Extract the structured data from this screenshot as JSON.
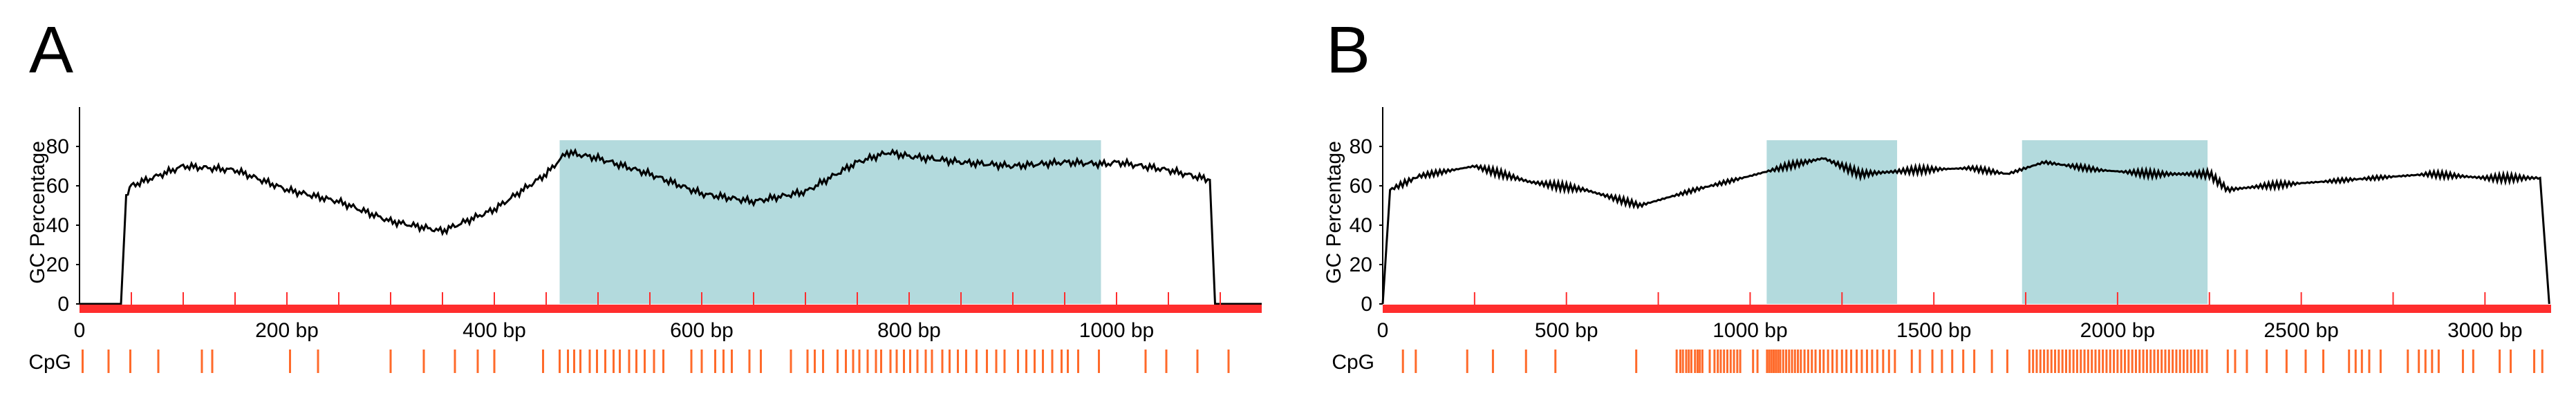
{
  "colors": {
    "trace": "#000000",
    "island": "#b3dadd",
    "track": "#ff2d2d",
    "cpg": "#ff6a2a",
    "axis": "#000000"
  },
  "chart_data": [
    {
      "type": "line",
      "panel_label": "A",
      "ylabel": "GC Percentage",
      "yticks": [
        0,
        20,
        40,
        60,
        80
      ],
      "ylim": [
        0,
        100
      ],
      "xlim": [
        0,
        1140
      ],
      "xticks": [
        0,
        200,
        400,
        600,
        800,
        1000
      ],
      "xtick_labels": [
        "0",
        "200 bp",
        "400 bp",
        "600 bp",
        "800 bp",
        "1000 bp"
      ],
      "x": [
        0,
        40,
        45,
        50,
        100,
        150,
        200,
        250,
        300,
        350,
        400,
        450,
        470,
        500,
        550,
        600,
        650,
        700,
        750,
        780,
        800,
        850,
        900,
        950,
        990,
        1000,
        1050,
        1090,
        1095,
        1140
      ],
      "y": [
        0,
        0,
        55,
        60,
        70,
        68,
        58,
        52,
        42,
        37,
        48,
        66,
        77,
        74,
        66,
        56,
        52,
        57,
        72,
        77,
        75,
        72,
        70,
        72,
        71,
        72,
        68,
        63,
        0,
        0
      ],
      "islands": [
        [
          463,
          985
        ]
      ],
      "cpg_label": "CpG",
      "cpg_sites": [
        3,
        28,
        49,
        76,
        118,
        128,
        203,
        230,
        300,
        332,
        362,
        384,
        400,
        447,
        463,
        471,
        477,
        483,
        492,
        499,
        507,
        515,
        521,
        530,
        537,
        545,
        554,
        563,
        590,
        600,
        613,
        621,
        629,
        646,
        657,
        686,
        702,
        709,
        717,
        731,
        739,
        746,
        752,
        760,
        768,
        773,
        782,
        788,
        795,
        801,
        808,
        816,
        822,
        832,
        839,
        847,
        855,
        865,
        875,
        884,
        892,
        905,
        913,
        921,
        929,
        938,
        947,
        953,
        963,
        983,
        1028,
        1048,
        1078,
        1108
      ]
    },
    {
      "type": "line",
      "panel_label": "B",
      "ylabel": "GC Percentage",
      "yticks": [
        0,
        20,
        40,
        60,
        80
      ],
      "ylim": [
        0,
        100
      ],
      "xlim": [
        0,
        3180
      ],
      "xticks": [
        0,
        500,
        1000,
        1500,
        2000,
        2500,
        3000
      ],
      "xtick_labels": [
        "0",
        "500 bp",
        "1000 bp",
        "1500 bp",
        "2000 bp",
        "2500 bp",
        "3000 bp"
      ],
      "x": [
        0,
        20,
        100,
        250,
        400,
        550,
        700,
        850,
        1000,
        1100,
        1200,
        1300,
        1450,
        1600,
        1700,
        1800,
        1950,
        2100,
        2250,
        2300,
        2400,
        2550,
        2700,
        2850,
        3000,
        3150,
        3175
      ],
      "y": [
        0,
        58,
        65,
        70,
        62,
        58,
        50,
        58,
        65,
        70,
        74,
        66,
        68,
        69,
        66,
        72,
        68,
        66,
        66,
        58,
        60,
        62,
        64,
        66,
        64,
        64,
        0
      ],
      "islands": [
        [
          1045,
          1400
        ],
        [
          1740,
          2245
        ]
      ],
      "cpg_label": "CpG",
      "cpg_sites": [
        55,
        90,
        230,
        300,
        390,
        470,
        690,
        800,
        810,
        817,
        826,
        833,
        840,
        850,
        857,
        863,
        870,
        890,
        903,
        912,
        920,
        929,
        938,
        947,
        956,
        965,
        973,
        1008,
        1020,
        1046,
        1052,
        1058,
        1064,
        1070,
        1076,
        1082,
        1090,
        1098,
        1106,
        1114,
        1122,
        1130,
        1138,
        1148,
        1158,
        1168,
        1178,
        1190,
        1200,
        1212,
        1224,
        1236,
        1250,
        1262,
        1275,
        1290,
        1304,
        1318,
        1332,
        1346,
        1362,
        1378,
        1394,
        1440,
        1462,
        1496,
        1522,
        1550,
        1580,
        1610,
        1658,
        1700,
        1760,
        1770,
        1780,
        1790,
        1800,
        1810,
        1820,
        1830,
        1840,
        1850,
        1860,
        1870,
        1880,
        1890,
        1900,
        1910,
        1920,
        1930,
        1940,
        1950,
        1960,
        1970,
        1980,
        1990,
        2000,
        2010,
        2020,
        2030,
        2040,
        2050,
        2060,
        2070,
        2080,
        2090,
        2100,
        2110,
        2120,
        2130,
        2140,
        2150,
        2160,
        2170,
        2180,
        2190,
        2200,
        2210,
        2220,
        2230,
        2243,
        2300,
        2320,
        2352,
        2406,
        2460,
        2512,
        2560,
        2630,
        2648,
        2665,
        2685,
        2716,
        2790,
        2820,
        2838,
        2856,
        2874,
        2940,
        2968,
        3040,
        3070,
        3134,
        3156
      ]
    }
  ]
}
